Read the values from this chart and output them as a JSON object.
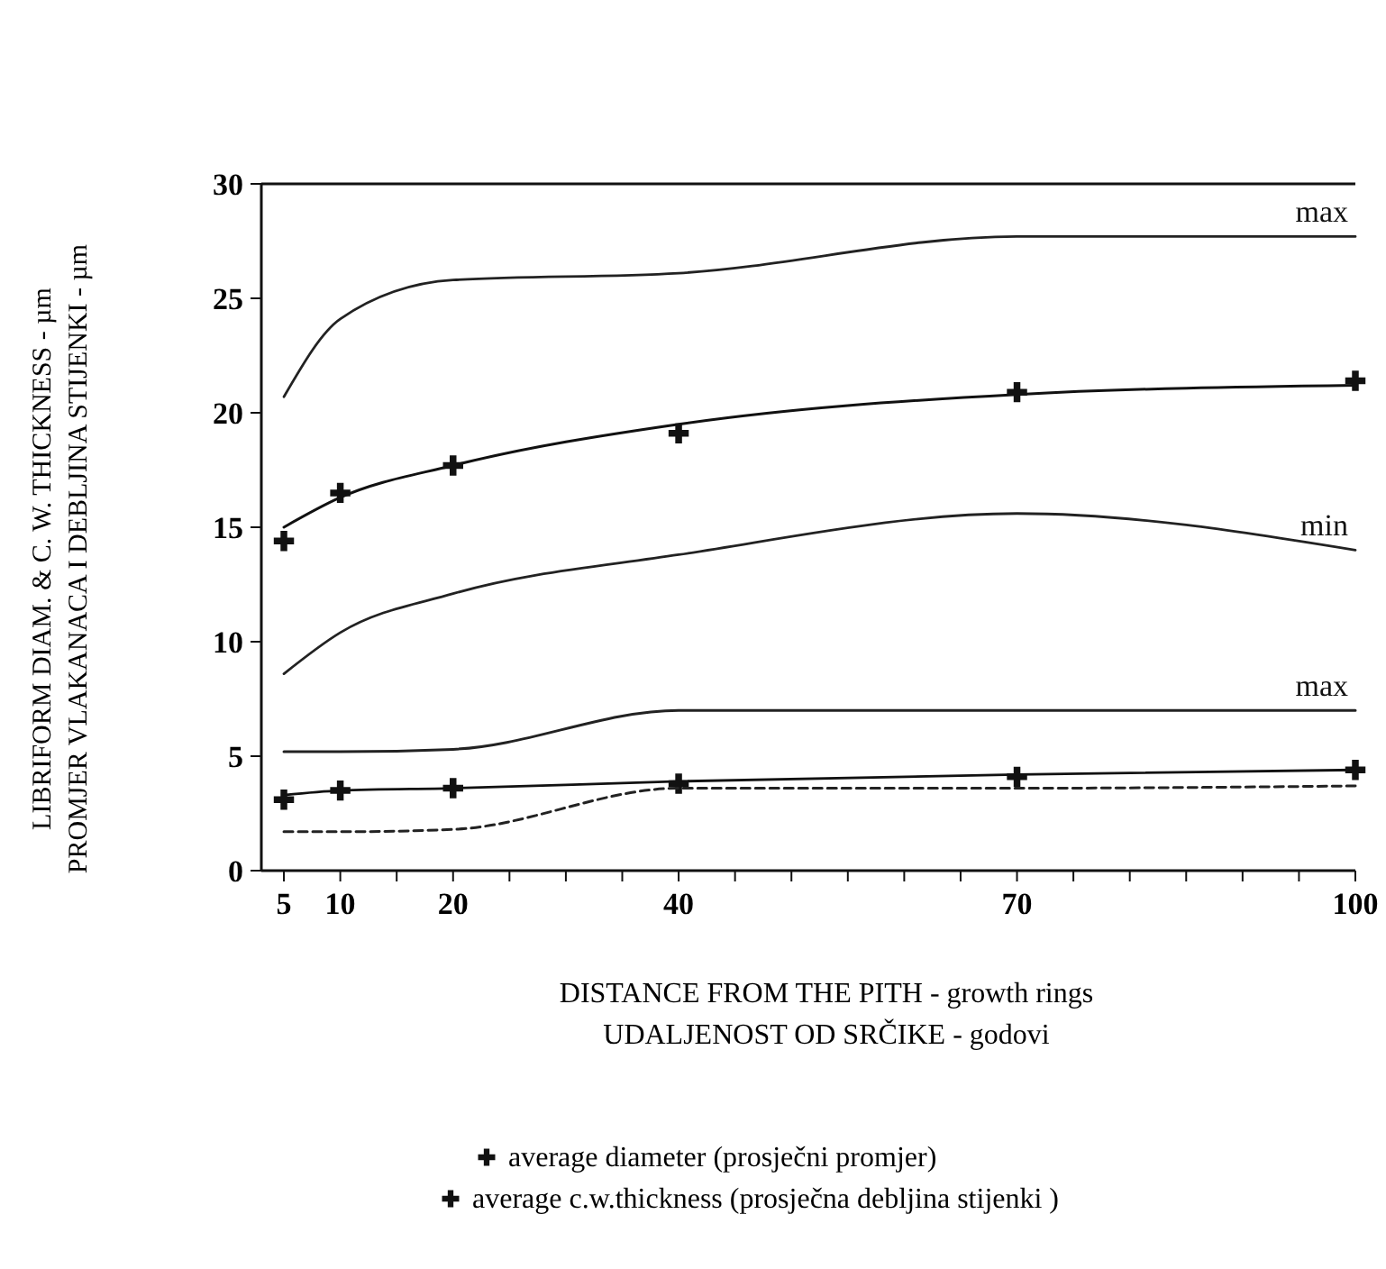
{
  "chart_data": {
    "type": "line",
    "xlabel": "DISTANCE FROM THE PITH - growth rings\nUDALJENOST OD SRČIKE - godovi",
    "ylabel": "LIBRIFORM DIAM. & C. W. THICKNESS - µm\nPROMJER VLAKANACA I DEBLJINA STIJENKI - µm",
    "x": [
      5,
      10,
      20,
      40,
      70,
      100
    ],
    "xlim": [
      3,
      100
    ],
    "xticks": [
      5,
      10,
      {
        "value": 15,
        "label": null
      },
      20,
      {
        "value": 25,
        "label": null
      },
      {
        "value": 30,
        "label": null
      },
      {
        "value": 35,
        "label": null
      },
      40,
      {
        "value": 45,
        "label": null
      },
      {
        "value": 50,
        "label": null
      },
      {
        "value": 55,
        "label": null
      },
      {
        "value": 60,
        "label": null
      },
      {
        "value": 65,
        "label": null
      },
      70,
      {
        "value": 75,
        "label": null
      },
      {
        "value": 80,
        "label": null
      },
      {
        "value": 85,
        "label": null
      },
      {
        "value": 90,
        "label": null
      },
      {
        "value": 95,
        "label": null
      },
      100
    ],
    "ylim": [
      0,
      30
    ],
    "yticks": [
      0,
      5,
      10,
      15,
      20,
      25,
      30
    ],
    "grid": false,
    "legend": "bottom",
    "marker": "none",
    "line_style": "solid",
    "series": [
      {
        "name": "max",
        "color": "#222222",
        "values": [
          20.7,
          24.1,
          25.8,
          26.1,
          27.7,
          27.7
        ]
      },
      {
        "color": "#111111",
        "values": [
          15.0,
          16.3,
          17.7,
          19.5,
          20.8,
          21.2
        ]
      },
      {
        "type": "scatter",
        "name": "average diameter (prosječni promjer)",
        "marker": "cross",
        "color": "#111111",
        "values": [
          14.4,
          16.5,
          17.7,
          19.1,
          20.9,
          21.4
        ]
      },
      {
        "name": "min",
        "color": "#222222",
        "values": [
          8.6,
          10.4,
          12.1,
          13.8,
          15.6,
          14.0
        ]
      },
      {
        "name": "max",
        "color": "#222222",
        "values": [
          5.2,
          5.2,
          5.3,
          7.0,
          7.0,
          7.0
        ]
      },
      {
        "color": "#111111",
        "values": [
          3.3,
          3.5,
          3.6,
          3.9,
          4.2,
          4.4
        ]
      },
      {
        "type": "scatter",
        "name": "average c.w.thickness (prosječna debljina stijenki )",
        "marker": "cross",
        "color": "#111111",
        "values": [
          3.1,
          3.5,
          3.6,
          3.8,
          4.1,
          4.4
        ]
      },
      {
        "color": "#222222",
        "line_style": "dashed",
        "values": [
          1.7,
          1.7,
          1.8,
          3.6,
          3.6,
          3.7
        ]
      }
    ]
  }
}
